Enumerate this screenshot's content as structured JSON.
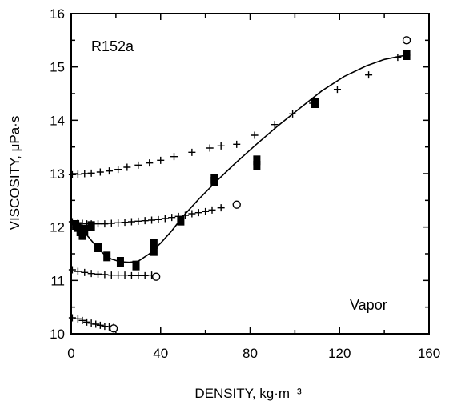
{
  "chart_data": {
    "type": "scatter",
    "title": "",
    "xlabel": "DENSITY, kg·m⁻³",
    "ylabel": "VISCOSITY, μPa·s",
    "xlim": [
      0,
      160
    ],
    "ylim": [
      10,
      16
    ],
    "x_ticks": [
      0,
      40,
      80,
      120,
      160
    ],
    "y_ticks": [
      10,
      11,
      12,
      13,
      14,
      15,
      16
    ],
    "grid": false,
    "legend": "none",
    "annotations": {
      "fluid": "R152a",
      "phase": "Vapor"
    },
    "series": [
      {
        "marker": "plus",
        "points": [
          [
            0.5,
            12.98
          ],
          [
            3,
            12.99
          ],
          [
            6,
            13.0
          ],
          [
            9,
            13.01
          ],
          [
            13,
            13.03
          ],
          [
            17,
            13.05
          ],
          [
            21,
            13.08
          ],
          [
            25,
            13.12
          ],
          [
            30,
            13.16
          ],
          [
            35,
            13.2
          ],
          [
            40,
            13.25
          ],
          [
            46,
            13.32
          ],
          [
            54,
            13.4
          ],
          [
            62,
            13.48
          ],
          [
            67,
            13.52
          ],
          [
            0.5,
            12.1
          ],
          [
            3,
            12.08
          ],
          [
            5,
            12.07
          ],
          [
            7,
            12.06
          ],
          [
            9,
            12.06
          ],
          [
            12,
            12.06
          ],
          [
            15,
            12.06
          ],
          [
            18,
            12.07
          ],
          [
            21,
            12.08
          ],
          [
            24,
            12.09
          ],
          [
            27,
            12.1
          ],
          [
            30,
            12.11
          ],
          [
            33,
            12.12
          ],
          [
            36,
            12.13
          ],
          [
            39,
            12.14
          ],
          [
            42,
            12.16
          ],
          [
            45,
            12.18
          ],
          [
            48,
            12.2
          ],
          [
            51,
            12.22
          ],
          [
            54,
            12.25
          ],
          [
            57,
            12.27
          ],
          [
            60,
            12.29
          ],
          [
            63,
            12.32
          ],
          [
            67,
            12.36
          ],
          [
            0.5,
            11.2
          ],
          [
            3,
            11.17
          ],
          [
            6,
            11.15
          ],
          [
            9,
            11.13
          ],
          [
            12,
            11.12
          ],
          [
            15,
            11.11
          ],
          [
            18,
            11.1
          ],
          [
            21,
            11.1
          ],
          [
            24,
            11.1
          ],
          [
            27,
            11.09
          ],
          [
            30,
            11.09
          ],
          [
            33,
            11.09
          ],
          [
            36,
            11.1
          ],
          [
            0.5,
            10.3
          ],
          [
            3,
            10.28
          ],
          [
            5,
            10.25
          ],
          [
            7,
            10.22
          ],
          [
            9,
            10.2
          ],
          [
            11,
            10.18
          ],
          [
            13,
            10.16
          ],
          [
            15,
            10.14
          ],
          [
            17,
            10.13
          ],
          [
            19,
            10.12
          ],
          [
            74,
            13.55
          ],
          [
            82,
            13.72
          ],
          [
            91,
            13.92
          ],
          [
            99,
            14.12
          ],
          [
            108,
            14.32
          ],
          [
            119,
            14.58
          ],
          [
            133,
            14.85
          ],
          [
            146,
            15.18
          ],
          [
            150,
            15.22
          ]
        ]
      },
      {
        "marker": "filled-square",
        "points": [
          [
            2,
            12.04
          ],
          [
            3,
            12.0
          ],
          [
            4,
            11.92
          ],
          [
            5,
            11.85
          ],
          [
            6,
            11.95
          ],
          [
            9,
            12.02
          ],
          [
            12,
            11.62
          ],
          [
            16,
            11.45
          ],
          [
            22,
            11.35
          ],
          [
            29,
            11.28
          ],
          [
            37,
            11.68
          ],
          [
            37,
            11.55
          ],
          [
            49,
            12.12
          ],
          [
            64,
            12.9
          ],
          [
            64,
            12.85
          ],
          [
            83,
            13.25
          ],
          [
            83,
            13.15
          ],
          [
            109,
            14.32
          ],
          [
            150,
            15.22
          ]
        ]
      },
      {
        "marker": "open-circle",
        "points": [
          [
            38,
            11.07
          ],
          [
            19,
            10.1
          ],
          [
            74,
            12.42
          ],
          [
            150,
            15.5
          ]
        ]
      },
      {
        "marker": "line",
        "points": [
          [
            0,
            12.08
          ],
          [
            3,
            12.05
          ],
          [
            6,
            11.9
          ],
          [
            9,
            11.75
          ],
          [
            12,
            11.6
          ],
          [
            15,
            11.48
          ],
          [
            18,
            11.4
          ],
          [
            22,
            11.35
          ],
          [
            26,
            11.34
          ],
          [
            30,
            11.36
          ],
          [
            35,
            11.5
          ],
          [
            40,
            11.7
          ],
          [
            45,
            11.93
          ],
          [
            50,
            12.2
          ],
          [
            57,
            12.52
          ],
          [
            65,
            12.86
          ],
          [
            73,
            13.18
          ],
          [
            82,
            13.52
          ],
          [
            92,
            13.88
          ],
          [
            102,
            14.22
          ],
          [
            112,
            14.55
          ],
          [
            122,
            14.82
          ],
          [
            132,
            15.02
          ],
          [
            140,
            15.14
          ],
          [
            147,
            15.2
          ],
          [
            150,
            15.22
          ]
        ]
      }
    ]
  }
}
